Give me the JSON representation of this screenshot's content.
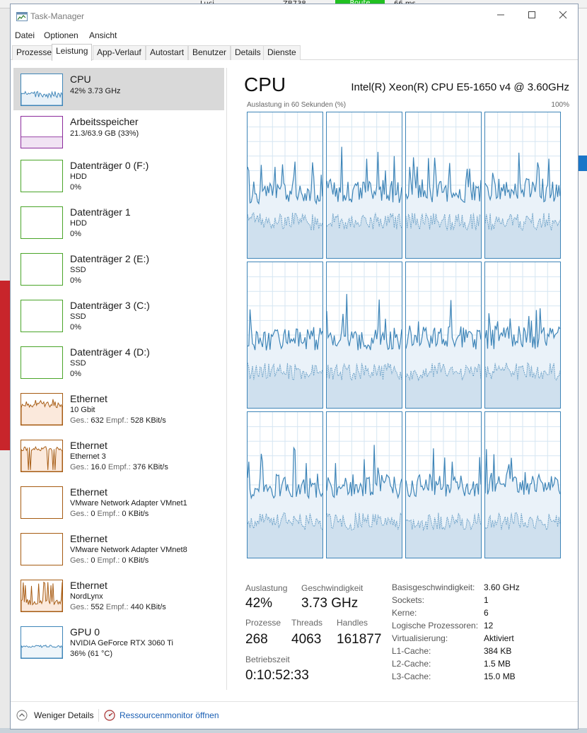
{
  "colors": {
    "cpu": "#3e85b8",
    "memory": "#8b2b9c",
    "disk": "#4aa529",
    "ethernet": "#a65b12",
    "gpu": "#3e85b8",
    "link": "#1a5fb4"
  },
  "background": {
    "name": "Luci",
    "code": "ZB738",
    "route": "Route",
    "latency": "66 ms"
  },
  "window": {
    "title": "Task-Manager",
    "icon": "task-manager-icon"
  },
  "menu": [
    "Datei",
    "Optionen",
    "Ansicht"
  ],
  "tabs": [
    {
      "label": "Prozesse",
      "active": false
    },
    {
      "label": "Leistung",
      "active": true
    },
    {
      "label": "App-Verlauf",
      "active": false
    },
    {
      "label": "Autostart",
      "active": false
    },
    {
      "label": "Benutzer",
      "active": false
    },
    {
      "label": "Details",
      "active": false
    },
    {
      "label": "Dienste",
      "active": false
    }
  ],
  "sidebar": [
    {
      "kind": "cpu",
      "title": "CPU",
      "lines": [
        "42% 3.73 GHz"
      ],
      "selected": true
    },
    {
      "kind": "memory",
      "title": "Arbeitsspeicher",
      "lines": [
        "21.3/63.9 GB (33%)"
      ]
    },
    {
      "kind": "disk",
      "title": "Datenträger 0 (F:)",
      "lines": [
        "HDD",
        "0%"
      ]
    },
    {
      "kind": "disk",
      "title": "Datenträger 1",
      "lines": [
        "HDD",
        "0%"
      ]
    },
    {
      "kind": "disk",
      "title": "Datenträger 2 (E:)",
      "lines": [
        "SSD",
        "0%"
      ]
    },
    {
      "kind": "disk",
      "title": "Datenträger 3 (C:)",
      "lines": [
        "SSD",
        "0%"
      ]
    },
    {
      "kind": "disk",
      "title": "Datenträger 4 (D:)",
      "lines": [
        "SSD",
        "0%"
      ]
    },
    {
      "kind": "ethernet",
      "title": "Ethernet",
      "lines": [
        "10 Gbit"
      ],
      "send_label": "Ges.:",
      "send": "632",
      "recv_label": "Empf.:",
      "recv": "528 KBit/s",
      "activity": "high"
    },
    {
      "kind": "ethernet",
      "title": "Ethernet",
      "lines": [
        "Ethernet 3"
      ],
      "send_label": "Ges.:",
      "send": "16.0",
      "recv_label": "Empf.:",
      "recv": "376 KBit/s",
      "activity": "full"
    },
    {
      "kind": "ethernet",
      "title": "Ethernet",
      "lines": [
        "VMware Network Adapter VMnet1"
      ],
      "send_label": "Ges.:",
      "send": "0",
      "recv_label": "Empf.:",
      "recv": "0 KBit/s",
      "activity": "none"
    },
    {
      "kind": "ethernet",
      "title": "Ethernet",
      "lines": [
        "VMware Network Adapter VMnet8"
      ],
      "send_label": "Ges.:",
      "send": "0",
      "recv_label": "Empf.:",
      "recv": "0 KBit/s",
      "activity": "none"
    },
    {
      "kind": "ethernet",
      "title": "Ethernet",
      "lines": [
        "NordLynx"
      ],
      "send_label": "Ges.:",
      "send": "552",
      "recv_label": "Empf.:",
      "recv": "440 KBit/s",
      "activity": "spiky"
    },
    {
      "kind": "gpu",
      "title": "GPU 0",
      "lines": [
        "NVIDIA GeForce RTX 3060 Ti",
        "36% (61 °C)"
      ]
    }
  ],
  "main": {
    "title": "CPU",
    "model": "Intel(R) Xeon(R) CPU E5-1650 v4 @ 3.60GHz",
    "graph_label": "Auslastung in 60 Sekunden (%)",
    "graph_max": "100%",
    "cores": 12
  },
  "stats": {
    "utilization_label": "Auslastung",
    "utilization": "42%",
    "speed_label": "Geschwindigkeit",
    "speed": "3.73 GHz",
    "processes_label": "Prozesse",
    "processes": "268",
    "threads_label": "Threads",
    "threads": "4063",
    "handles_label": "Handles",
    "handles": "161877",
    "uptime_label": "Betriebszeit",
    "uptime": "0:10:52:33"
  },
  "specs": [
    {
      "label": "Basisgeschwindigkeit:",
      "value": "3.60 GHz"
    },
    {
      "label": "Sockets:",
      "value": "1"
    },
    {
      "label": "Kerne:",
      "value": "6"
    },
    {
      "label": "Logische Prozessoren:",
      "value": "12"
    },
    {
      "label": "Virtualisierung:",
      "value": "Aktiviert"
    },
    {
      "label": "L1-Cache:",
      "value": "384 KB"
    },
    {
      "label": "L2-Cache:",
      "value": "1.5 MB"
    },
    {
      "label": "L3-Cache:",
      "value": "15.0 MB"
    }
  ],
  "footer": {
    "less_details": "Weniger Details",
    "less_icon": "chevron-up-circle-icon",
    "resource_monitor": "Ressourcenmonitor öffnen",
    "resource_icon": "resource-monitor-icon"
  }
}
